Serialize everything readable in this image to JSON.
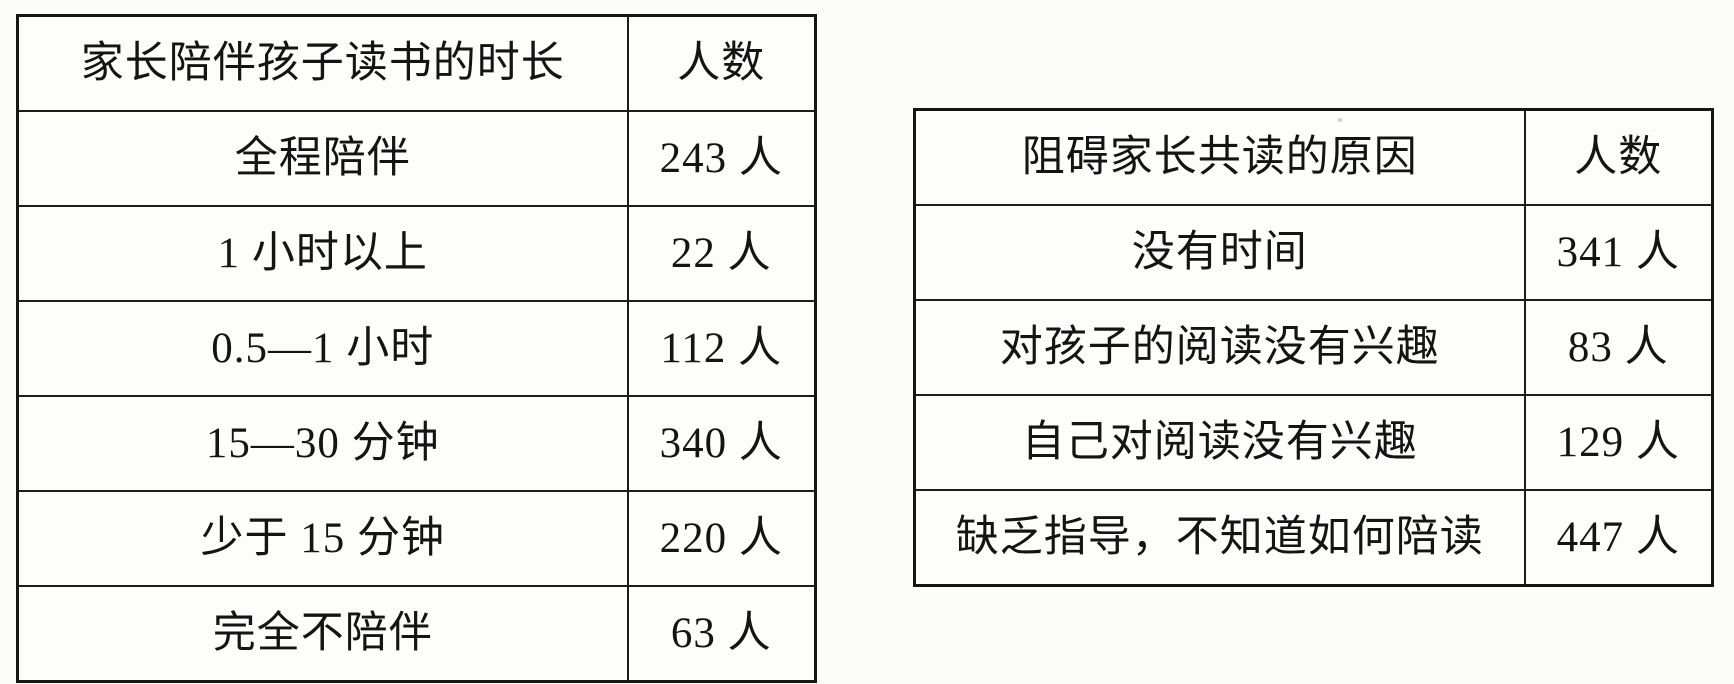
{
  "tables": [
    {
      "id": "parent-reading-duration",
      "headers": [
        "家长陪伴孩子读书的时长",
        "人数"
      ],
      "rows": [
        {
          "label": "全程陪伴",
          "count": "243 人"
        },
        {
          "label": "1 小时以上",
          "count": "22 人"
        },
        {
          "label": "0.5—1 小时",
          "count": "112 人"
        },
        {
          "label": "15—30 分钟",
          "count": "340 人"
        },
        {
          "label": "少于 15 分钟",
          "count": "220 人"
        },
        {
          "label": "完全不陪伴",
          "count": "63 人"
        }
      ]
    },
    {
      "id": "co-reading-obstacles",
      "headers": [
        "阻碍家长共读的原因",
        "人数"
      ],
      "rows": [
        {
          "label": "没有时间",
          "count": "341 人"
        },
        {
          "label": "对孩子的阅读没有兴趣",
          "count": "83 人"
        },
        {
          "label": "自己对阅读没有兴趣",
          "count": "129 人"
        },
        {
          "label": "缺乏指导，不知道如何陪读",
          "count": "447 人"
        }
      ]
    }
  ],
  "chart_data": [
    {
      "type": "table",
      "title": "家长陪伴孩子读书的时长",
      "columns": [
        "家长陪伴孩子读书的时长",
        "人数"
      ],
      "categories": [
        "全程陪伴",
        "1 小时以上",
        "0.5—1 小时",
        "15—30 分钟",
        "少于 15 分钟",
        "完全不陪伴"
      ],
      "values": [
        243,
        22,
        112,
        340,
        220,
        63
      ]
    },
    {
      "type": "table",
      "title": "阻碍家长共读的原因",
      "columns": [
        "阻碍家长共读的原因",
        "人数"
      ],
      "categories": [
        "没有时间",
        "对孩子的阅读没有兴趣",
        "自己对阅读没有兴趣",
        "缺乏指导，不知道如何陪读"
      ],
      "values": [
        341,
        83,
        129,
        447
      ]
    }
  ]
}
